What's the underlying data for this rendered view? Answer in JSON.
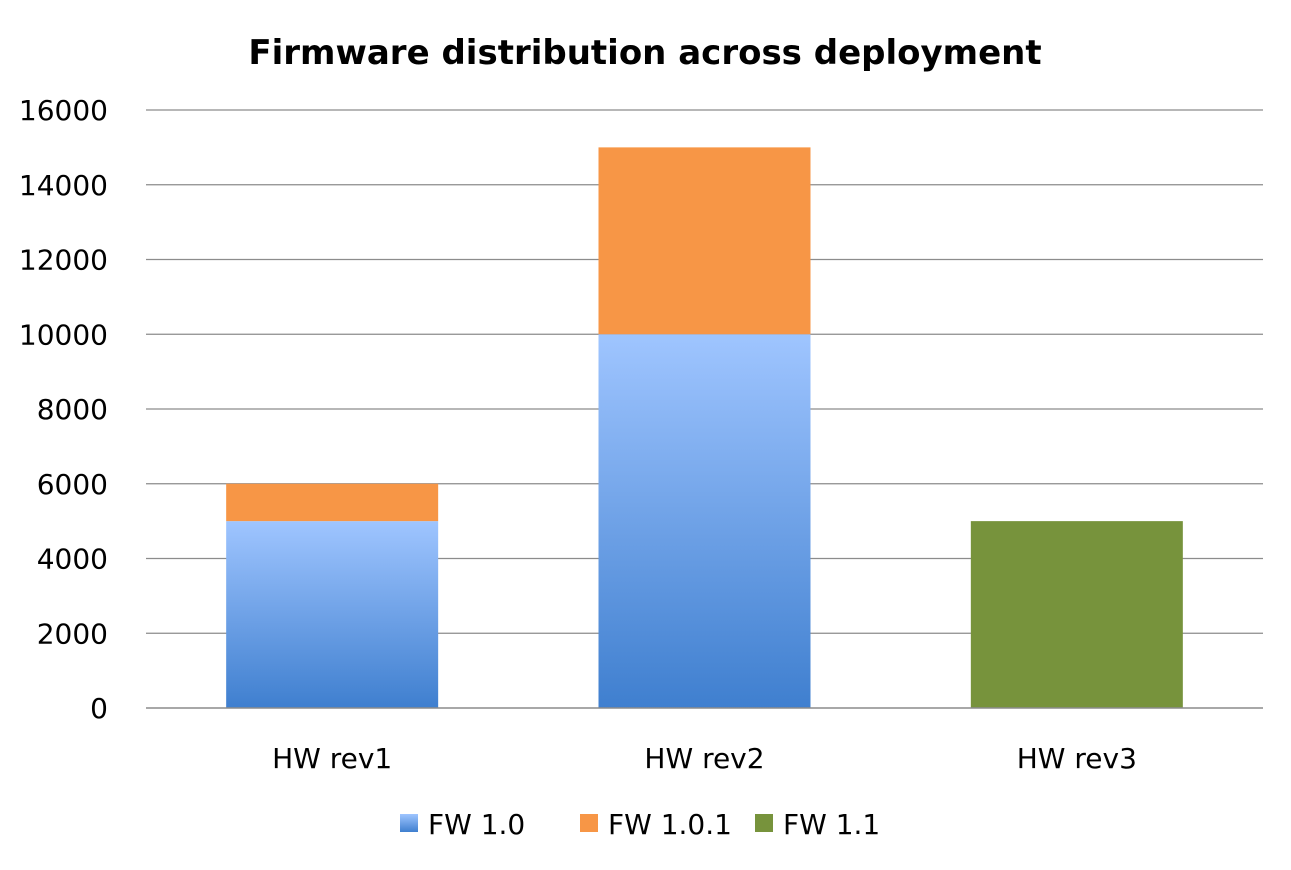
{
  "chart_data": {
    "type": "bar",
    "stacked": true,
    "title": "Firmware distribution across deployment",
    "xlabel": "",
    "ylabel": "",
    "categories": [
      "HW rev1",
      "HW rev2",
      "HW rev3"
    ],
    "series": [
      {
        "name": "FW 1.0",
        "values": [
          5000,
          10000,
          0
        ],
        "color": "#4f8fdf",
        "gradient": [
          "#9fc5ff",
          "#3f7fcf"
        ]
      },
      {
        "name": "FW 1.0.1",
        "values": [
          1000,
          5000,
          0
        ],
        "color": "#f79646"
      },
      {
        "name": "FW 1.1",
        "values": [
          0,
          0,
          5000
        ],
        "color": "#77933c"
      }
    ],
    "ylim": [
      0,
      16000
    ],
    "yticks": [
      "0",
      "2000",
      "4000",
      "6000",
      "8000",
      "10000",
      "12000",
      "14000",
      "16000"
    ],
    "grid": true,
    "legend_position": "bottom"
  }
}
